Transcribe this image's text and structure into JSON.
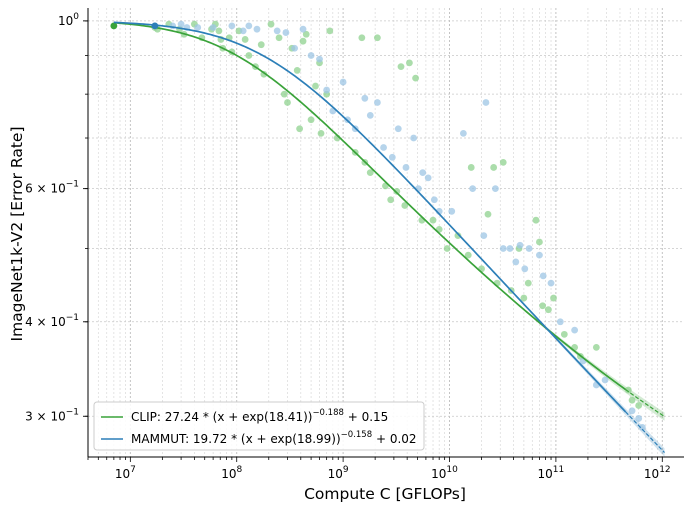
{
  "chart_data": {
    "type": "scatter",
    "xlabel": "Compute C [GFLOPs]",
    "ylabel": "ImageNet1k-V2 [Error Rate]",
    "x_scale": "log",
    "y_scale": "log",
    "xlim": [
      4000000.0,
      1600000000000.0
    ],
    "ylim": [
      0.265,
      1.04
    ],
    "grid": true,
    "legend_position": "lower-left",
    "x_tick_labels": [
      {
        "value": 10000000.0,
        "base": "10",
        "exp": "7"
      },
      {
        "value": 100000000.0,
        "base": "10",
        "exp": "8"
      },
      {
        "value": 1000000000.0,
        "base": "10",
        "exp": "9"
      },
      {
        "value": 10000000000.0,
        "base": "10",
        "exp": "10"
      },
      {
        "value": 100000000000.0,
        "base": "10",
        "exp": "11"
      },
      {
        "value": 1000000000000.0,
        "base": "10",
        "exp": "12"
      }
    ],
    "y_tick_labels": [
      {
        "value": 1.0,
        "base": "10",
        "exp": "0",
        "mult": ""
      },
      {
        "value": 0.6,
        "base": "10",
        "exp": "−1",
        "mult": "6 × "
      },
      {
        "value": 0.4,
        "base": "10",
        "exp": "−1",
        "mult": "4 × "
      },
      {
        "value": 0.3,
        "base": "10",
        "exp": "−1",
        "mult": "3 × "
      }
    ],
    "series": [
      {
        "name": "CLIP",
        "color": "#3aa33a",
        "point_color": "#8fd18f",
        "fit": {
          "A": 27.24,
          "B": 18.41,
          "alpha": 0.188,
          "E": 0.15
        },
        "legend_label": {
          "prefix": "CLIP: 27.24 * (x + exp(18.41))",
          "exp": "−0.188",
          "suffix": " + 0.15"
        },
        "points": [
          [
            7000000.0,
            0.985
          ],
          [
            17000000.0,
            0.98
          ],
          [
            18000000.0,
            0.975
          ],
          [
            23000000.0,
            0.99
          ],
          [
            29000000.0,
            0.975
          ],
          [
            32000000.0,
            0.96
          ],
          [
            40000000.0,
            0.99
          ],
          [
            47000000.0,
            0.95
          ],
          [
            58000000.0,
            0.975
          ],
          [
            63000000.0,
            0.99
          ],
          [
            68000000.0,
            0.97
          ],
          [
            71000000.0,
            0.945
          ],
          [
            74000000.0,
            0.92
          ],
          [
            85000000.0,
            0.95
          ],
          [
            90000000.0,
            0.91
          ],
          [
            105000000.0,
            0.97
          ],
          [
            120000000.0,
            0.945
          ],
          [
            130000000.0,
            0.9
          ],
          [
            150000000.0,
            0.87
          ],
          [
            170000000.0,
            0.93
          ],
          [
            180000000.0,
            0.85
          ],
          [
            210000000.0,
            0.99
          ],
          [
            250000000.0,
            0.95
          ],
          [
            280000000.0,
            0.8
          ],
          [
            300000000.0,
            0.78
          ],
          [
            330000000.0,
            0.92
          ],
          [
            370000000.0,
            0.86
          ],
          [
            390000000.0,
            0.72
          ],
          [
            420000000.0,
            0.94
          ],
          [
            450000000.0,
            0.96
          ],
          [
            500000000.0,
            0.74
          ],
          [
            550000000.0,
            0.82
          ],
          [
            600000000.0,
            0.88
          ],
          [
            620000000.0,
            0.71
          ],
          [
            700000000.0,
            0.8
          ],
          [
            750000000.0,
            0.97
          ],
          [
            880000000.0,
            0.7
          ],
          [
            1300000000.0,
            0.67
          ],
          [
            1500000000.0,
            0.95
          ],
          [
            1600000000.0,
            0.65
          ],
          [
            1800000000.0,
            0.63
          ],
          [
            2100000000.0,
            0.95
          ],
          [
            2500000000.0,
            0.605
          ],
          [
            2800000000.0,
            0.58
          ],
          [
            3200000000.0,
            0.595
          ],
          [
            3500000000.0,
            0.87
          ],
          [
            3800000000.0,
            0.57
          ],
          [
            4200000000.0,
            0.88
          ],
          [
            4800000000.0,
            0.84
          ],
          [
            5500000000.0,
            0.545
          ],
          [
            7000000000.0,
            0.545
          ],
          [
            8000000000.0,
            0.53
          ],
          [
            9500000000.0,
            0.5
          ],
          [
            12000000000.0,
            0.52
          ],
          [
            15000000000.0,
            0.49
          ],
          [
            16000000000.0,
            0.64
          ],
          [
            20000000000.0,
            0.47
          ],
          [
            23000000000.0,
            0.555
          ],
          [
            26000000000.0,
            0.64
          ],
          [
            28000000000.0,
            0.45
          ],
          [
            32000000000.0,
            0.65
          ],
          [
            38000000000.0,
            0.44
          ],
          [
            45000000000.0,
            0.5
          ],
          [
            50000000000.0,
            0.43
          ],
          [
            55000000000.0,
            0.45
          ],
          [
            65000000000.0,
            0.545
          ],
          [
            70000000000.0,
            0.51
          ],
          [
            75000000000.0,
            0.42
          ],
          [
            85000000000.0,
            0.415
          ],
          [
            95000000000.0,
            0.43
          ],
          [
            120000000000.0,
            0.385
          ],
          [
            150000000000.0,
            0.37
          ],
          [
            170000000000.0,
            0.36
          ],
          [
            240000000000.0,
            0.37
          ],
          [
            480000000000.0,
            0.325
          ],
          [
            520000000000.0,
            0.315
          ],
          [
            600000000000.0,
            0.31
          ]
        ]
      },
      {
        "name": "MAMMUT",
        "color": "#2c7fb8",
        "point_color": "#9ec6e4",
        "fit": {
          "A": 19.72,
          "B": 18.99,
          "alpha": 0.158,
          "E": 0.02
        },
        "legend_label": {
          "prefix": "MAMMUT: 19.72 * (x + exp(18.99))",
          "exp": "−0.158",
          "suffix": " + 0.02"
        },
        "points": [
          [
            17000000.0,
            0.985
          ],
          [
            25000000.0,
            0.985
          ],
          [
            30000000.0,
            0.99
          ],
          [
            34000000.0,
            0.98
          ],
          [
            43000000.0,
            0.98
          ],
          [
            60000000.0,
            0.98
          ],
          [
            90000000.0,
            0.985
          ],
          [
            115000000.0,
            0.97
          ],
          [
            130000000.0,
            0.985
          ],
          [
            155000000.0,
            0.975
          ],
          [
            240000000.0,
            0.97
          ],
          [
            290000000.0,
            0.965
          ],
          [
            350000000.0,
            0.92
          ],
          [
            420000000.0,
            0.975
          ],
          [
            500000000.0,
            0.9
          ],
          [
            600000000.0,
            0.89
          ],
          [
            700000000.0,
            0.81
          ],
          [
            800000000.0,
            0.76
          ],
          [
            1000000000.0,
            0.83
          ],
          [
            1100000000.0,
            0.74
          ],
          [
            1300000000.0,
            0.72
          ],
          [
            1600000000.0,
            0.79
          ],
          [
            1800000000.0,
            0.75
          ],
          [
            2100000000.0,
            0.78
          ],
          [
            2400000000.0,
            0.68
          ],
          [
            2900000000.0,
            0.66
          ],
          [
            3300000000.0,
            0.72
          ],
          [
            3900000000.0,
            0.64
          ],
          [
            4600000000.0,
            0.7
          ],
          [
            5100000000.0,
            0.6
          ],
          [
            5600000000.0,
            0.63
          ],
          [
            6300000000.0,
            0.62
          ],
          [
            7200000000.0,
            0.58
          ],
          [
            8000000000.0,
            0.56
          ],
          [
            10500000000.0,
            0.56
          ],
          [
            13500000000.0,
            0.71
          ],
          [
            16500000000.0,
            0.6
          ],
          [
            21000000000.0,
            0.52
          ],
          [
            22000000000.0,
            0.78
          ],
          [
            27000000000.0,
            0.6
          ],
          [
            32000000000.0,
            0.5
          ],
          [
            37000000000.0,
            0.5
          ],
          [
            42000000000.0,
            0.48
          ],
          [
            46000000000.0,
            0.505
          ],
          [
            51000000000.0,
            0.47
          ],
          [
            56000000000.0,
            0.5
          ],
          [
            70000000000.0,
            0.49
          ],
          [
            76000000000.0,
            0.46
          ],
          [
            90000000000.0,
            0.45
          ],
          [
            110000000000.0,
            0.4
          ],
          [
            150000000000.0,
            0.39
          ],
          [
            180000000000.0,
            0.355
          ],
          [
            240000000000.0,
            0.33
          ],
          [
            290000000000.0,
            0.335
          ],
          [
            520000000000.0,
            0.305
          ],
          [
            600000000000.0,
            0.298
          ],
          [
            650000000000.0,
            0.29
          ]
        ]
      }
    ]
  }
}
